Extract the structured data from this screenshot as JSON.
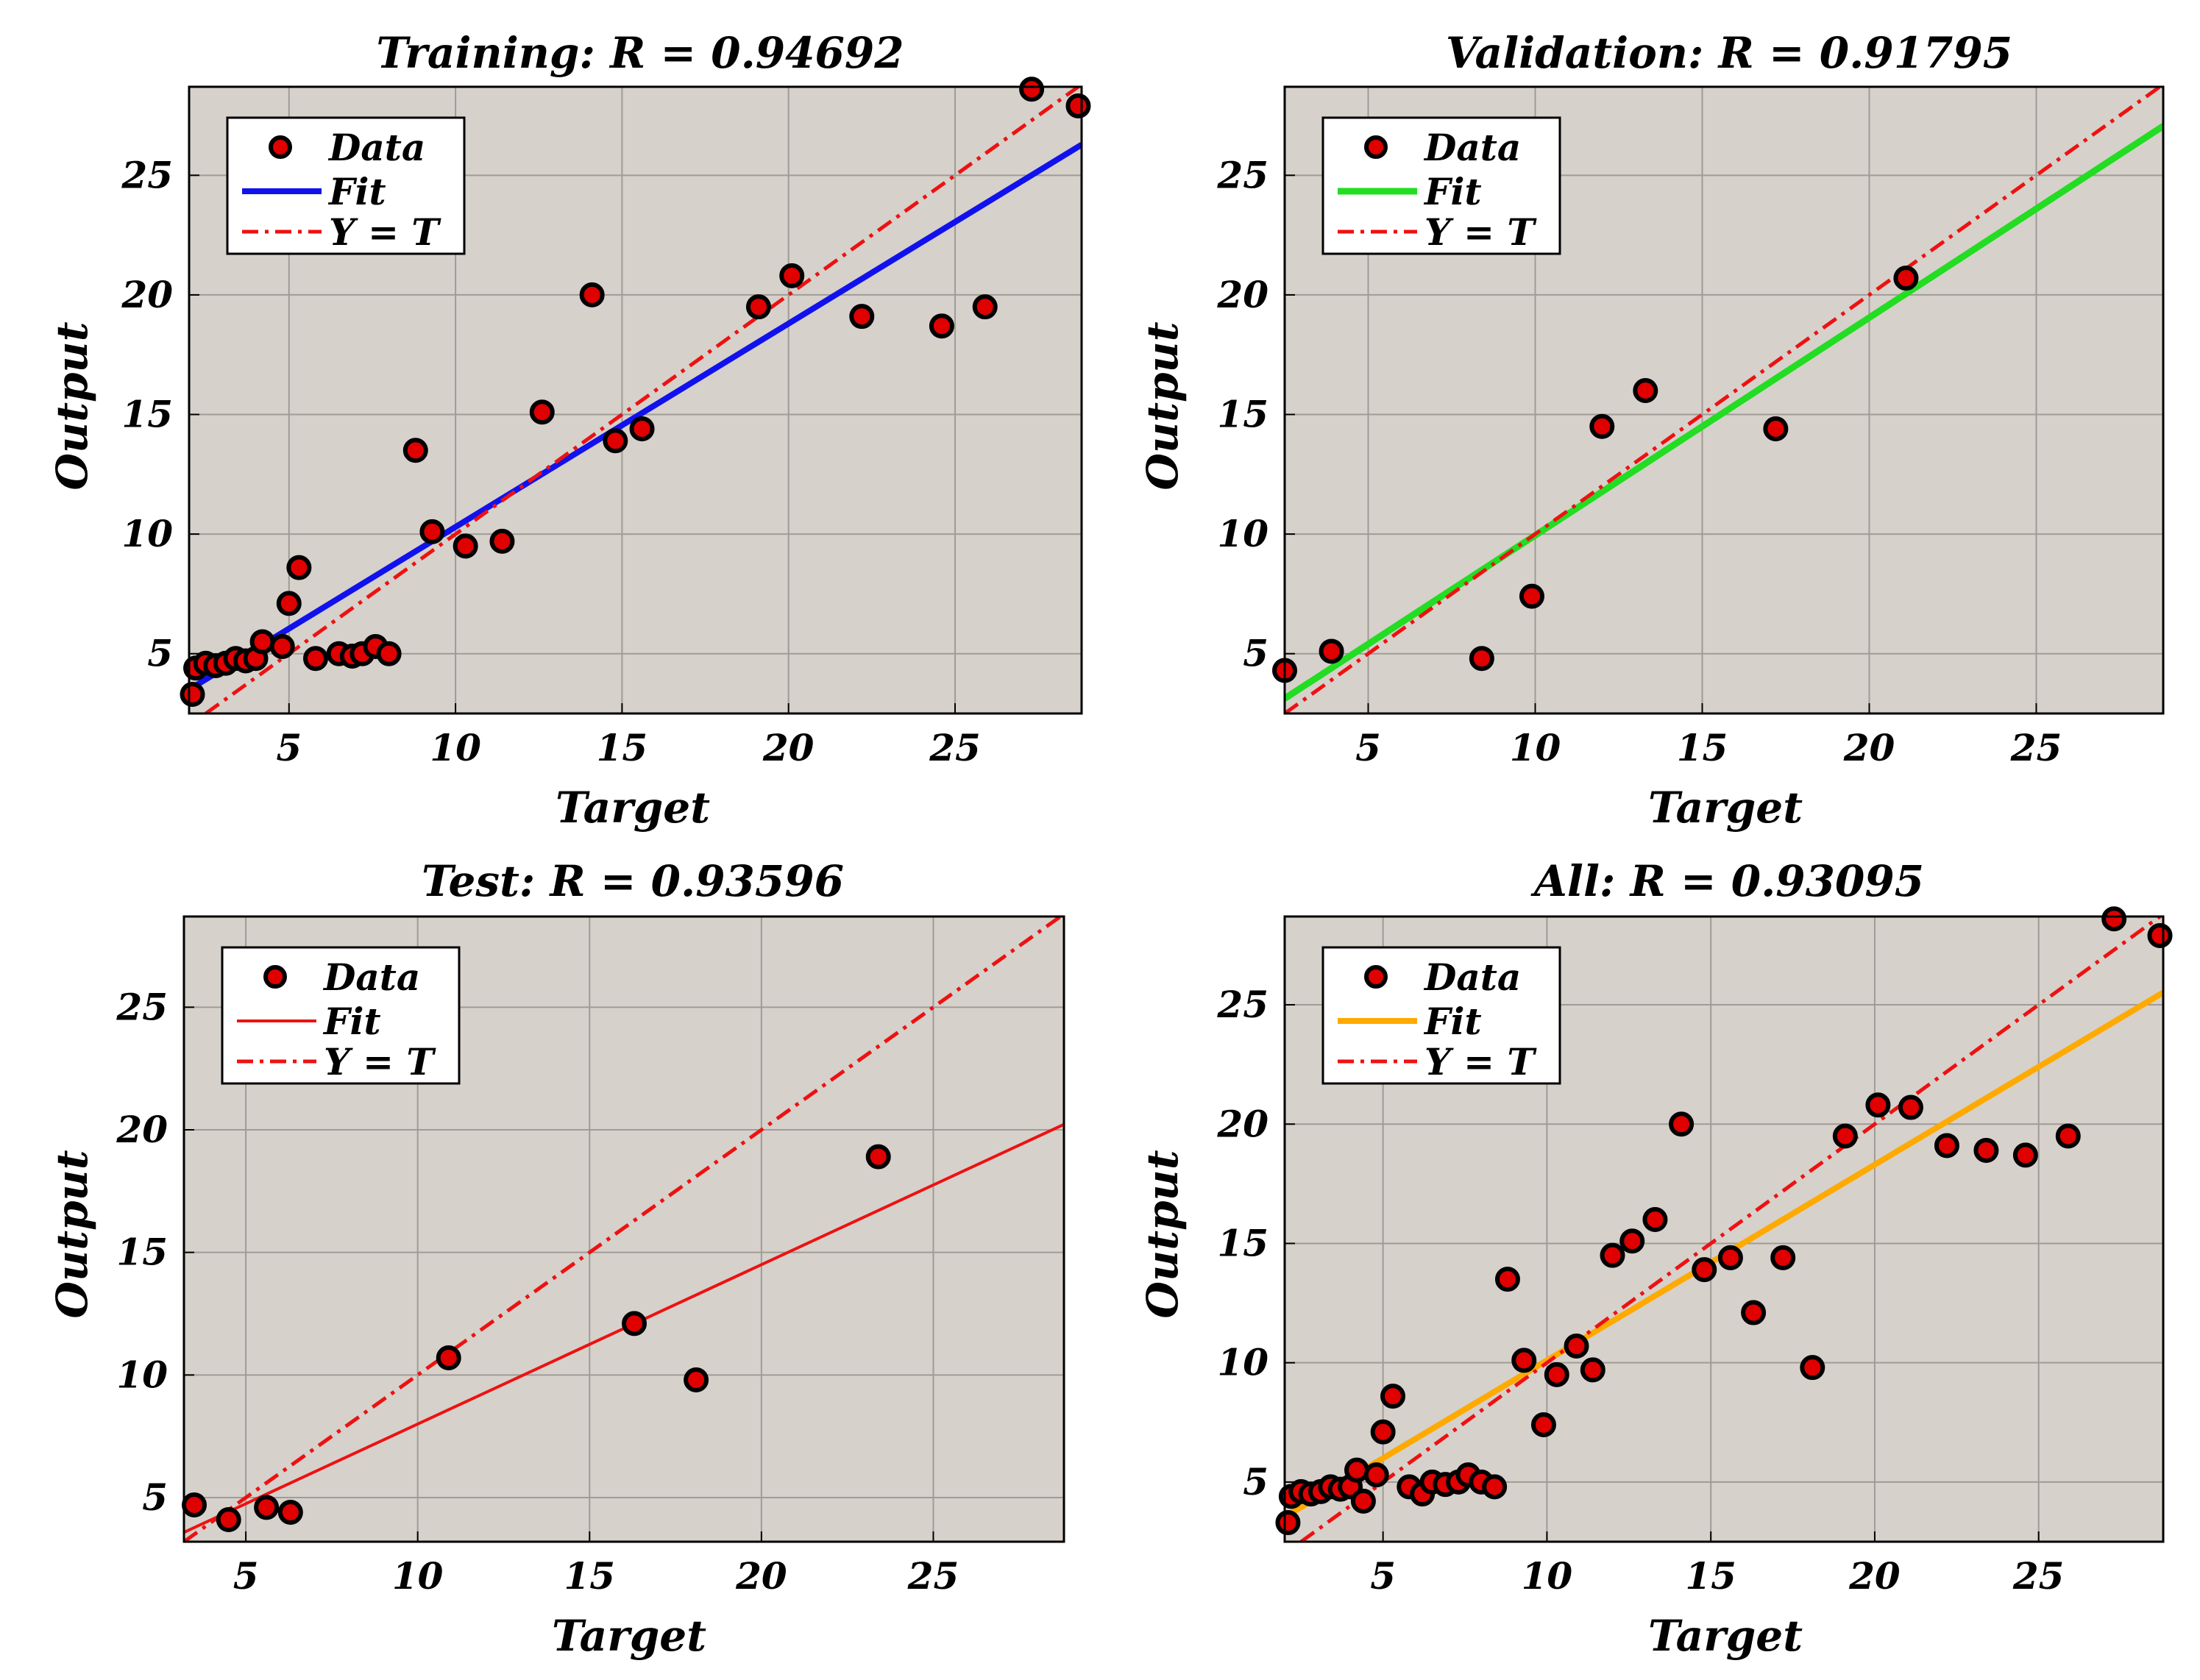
{
  "colors": {
    "plot_background": "#d6d1cb",
    "grid": "#a09b96",
    "marker_fill": "#e00000",
    "marker_edge": "#000000",
    "ideal_line": "#ee1111",
    "legend_background": "#ffffff"
  },
  "chart_data": [
    {
      "type": "scatter",
      "id": "training",
      "title": "Training: R = 0.94692",
      "xlabel": "Target",
      "ylabel": "Output",
      "xlim": [
        2,
        28.8
      ],
      "ylim": [
        2.5,
        28.7
      ],
      "xticks": [
        5,
        10,
        15,
        20,
        25
      ],
      "yticks": [
        5,
        10,
        15,
        20,
        25
      ],
      "grid": true,
      "legend": {
        "position": "top-left",
        "entries": [
          "Data",
          "Fit",
          "Y = T"
        ]
      },
      "fit_color": "#1111ee",
      "fit_width": 8,
      "fit": {
        "slope": 0.85,
        "intercept": 1.8
      },
      "points": [
        [
          2.1,
          3.3
        ],
        [
          2.2,
          4.4
        ],
        [
          2.5,
          4.6
        ],
        [
          2.8,
          4.5
        ],
        [
          3.1,
          4.6
        ],
        [
          3.4,
          4.8
        ],
        [
          3.7,
          4.7
        ],
        [
          4,
          4.8
        ],
        [
          4.2,
          5.5
        ],
        [
          4.8,
          5.3
        ],
        [
          5,
          7.1
        ],
        [
          5.3,
          8.6
        ],
        [
          5.8,
          4.8
        ],
        [
          6.5,
          5
        ],
        [
          6.9,
          4.9
        ],
        [
          7.2,
          5
        ],
        [
          7.6,
          5.3
        ],
        [
          8,
          5
        ],
        [
          8.8,
          13.5
        ],
        [
          9.3,
          10.1
        ],
        [
          10.3,
          9.5
        ],
        [
          11.4,
          9.7
        ],
        [
          12.6,
          15.1
        ],
        [
          14.1,
          20
        ],
        [
          14.8,
          13.9
        ],
        [
          15.6,
          14.4
        ],
        [
          19.1,
          19.5
        ],
        [
          20.1,
          20.8
        ],
        [
          22.2,
          19.1
        ],
        [
          24.6,
          18.7
        ],
        [
          25.9,
          19.5
        ],
        [
          27.3,
          28.6
        ],
        [
          28.7,
          27.9
        ]
      ]
    },
    {
      "type": "scatter",
      "id": "validation",
      "title": "Validation: R = 0.91795",
      "xlabel": "Target",
      "ylabel": "Output",
      "xlim": [
        2.5,
        28.8
      ],
      "ylim": [
        2.5,
        28.7
      ],
      "xticks": [
        5,
        10,
        15,
        20,
        25
      ],
      "yticks": [
        5,
        10,
        15,
        20,
        25
      ],
      "grid": true,
      "legend": {
        "position": "top-left",
        "entries": [
          "Data",
          "Fit",
          "Y = T"
        ]
      },
      "fit_color": "#22dd22",
      "fit_width": 9,
      "fit": {
        "slope": 0.91,
        "intercept": 0.85
      },
      "points": [
        [
          2.5,
          4.3
        ],
        [
          3.9,
          5.1
        ],
        [
          8.4,
          4.8
        ],
        [
          9.9,
          7.4
        ],
        [
          12,
          14.5
        ],
        [
          13.3,
          16
        ],
        [
          17.2,
          14.4
        ],
        [
          21.1,
          20.7
        ]
      ]
    },
    {
      "type": "scatter",
      "id": "test",
      "title": "Test: R = 0.93596",
      "xlabel": "Target",
      "ylabel": "Output",
      "xlim": [
        3.2,
        28.8
      ],
      "ylim": [
        3.2,
        28.7
      ],
      "xticks": [
        5,
        10,
        15,
        20,
        25
      ],
      "yticks": [
        5,
        10,
        15,
        20,
        25
      ],
      "grid": true,
      "legend": {
        "position": "top-left",
        "entries": [
          "Data",
          "Fit",
          "Y = T"
        ]
      },
      "fit_color": "#ee1111",
      "fit_width": 4,
      "fit": {
        "slope": 0.65,
        "intercept": 1.5
      },
      "points": [
        [
          3.5,
          4.7
        ],
        [
          4.5,
          4.1
        ],
        [
          5.6,
          4.6
        ],
        [
          6.3,
          4.4
        ],
        [
          10.9,
          10.7
        ],
        [
          16.3,
          12.1
        ],
        [
          18.1,
          9.8
        ],
        [
          23.4,
          18.9
        ]
      ]
    },
    {
      "type": "scatter",
      "id": "all",
      "title": "All: R = 0.93095",
      "xlabel": "Target",
      "ylabel": "Output",
      "xlim": [
        2,
        28.8
      ],
      "ylim": [
        2.5,
        28.7
      ],
      "xticks": [
        5,
        10,
        15,
        20,
        25
      ],
      "yticks": [
        5,
        10,
        15,
        20,
        25
      ],
      "grid": true,
      "legend": {
        "position": "top-left",
        "entries": [
          "Data",
          "Fit",
          "Y = T"
        ]
      },
      "fit_color": "#ffaa00",
      "fit_width": 8,
      "fit": {
        "slope": 0.82,
        "intercept": 1.9
      },
      "points": [
        [
          2.1,
          3.3
        ],
        [
          2.2,
          4.4
        ],
        [
          2.5,
          4.6
        ],
        [
          2.8,
          4.5
        ],
        [
          3.1,
          4.6
        ],
        [
          3.4,
          4.8
        ],
        [
          3.7,
          4.7
        ],
        [
          4,
          4.8
        ],
        [
          4.2,
          5.5
        ],
        [
          4.4,
          4.2
        ],
        [
          4.8,
          5.3
        ],
        [
          5,
          7.1
        ],
        [
          5.3,
          8.6
        ],
        [
          5.8,
          4.8
        ],
        [
          6.2,
          4.5
        ],
        [
          6.5,
          5
        ],
        [
          6.9,
          4.9
        ],
        [
          7.3,
          5
        ],
        [
          7.6,
          5.3
        ],
        [
          8,
          5
        ],
        [
          8.4,
          4.8
        ],
        [
          8.8,
          13.5
        ],
        [
          9.3,
          10.1
        ],
        [
          9.9,
          7.4
        ],
        [
          10.3,
          9.5
        ],
        [
          10.9,
          10.7
        ],
        [
          11.4,
          9.7
        ],
        [
          12,
          14.5
        ],
        [
          12.6,
          15.1
        ],
        [
          13.3,
          16
        ],
        [
          14.1,
          20
        ],
        [
          14.8,
          13.9
        ],
        [
          15.6,
          14.4
        ],
        [
          16.3,
          12.1
        ],
        [
          17.2,
          14.4
        ],
        [
          18.1,
          9.8
        ],
        [
          19.1,
          19.5
        ],
        [
          20.1,
          20.8
        ],
        [
          21.1,
          20.7
        ],
        [
          22.2,
          19.1
        ],
        [
          23.4,
          18.9
        ],
        [
          24.6,
          18.7
        ],
        [
          25.9,
          19.5
        ],
        [
          27.3,
          28.6
        ],
        [
          28.7,
          27.9
        ]
      ]
    }
  ]
}
